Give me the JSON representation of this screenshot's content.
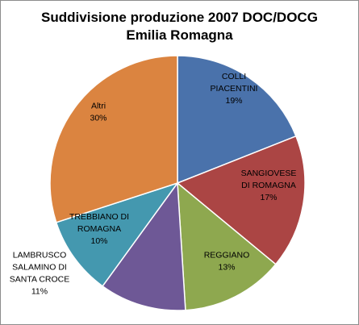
{
  "chart_data": {
    "type": "pie",
    "title_lines": [
      "Suddivisione produzione 2007 DOC/DOCG",
      "Emilia Romagna"
    ],
    "slices": [
      {
        "label_lines": [
          "COLLI",
          "PIACENTINI"
        ],
        "percent_label": "19%",
        "value": 19,
        "color": "#4a72ab"
      },
      {
        "label_lines": [
          "SANGIOVESE",
          "DI ROMAGNA"
        ],
        "percent_label": "17%",
        "value": 17,
        "color": "#ab4544"
      },
      {
        "label_lines": [
          "REGGIANO"
        ],
        "percent_label": "13%",
        "value": 13,
        "color": "#8ea84f"
      },
      {
        "label_lines": [
          "LAMBRUSCO",
          "SALAMINO DI",
          "SANTA CROCE"
        ],
        "percent_label": "11%",
        "value": 11,
        "color": "#6e5896"
      },
      {
        "label_lines": [
          "TREBBIANO DI",
          "ROMAGNA"
        ],
        "percent_label": "10%",
        "value": 10,
        "color": "#4498af"
      },
      {
        "label_lines": [
          "Altri"
        ],
        "percent_label": "30%",
        "value": 30,
        "color": "#db8440"
      }
    ],
    "start_angle_deg": 0,
    "direction": "clockwise",
    "legend": "none"
  }
}
